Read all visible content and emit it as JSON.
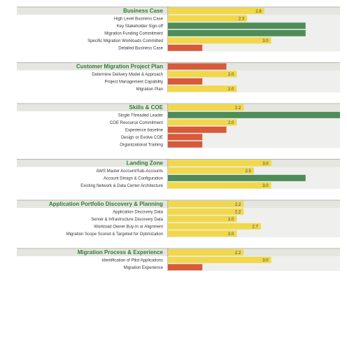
{
  "chart_data": {
    "type": "bar",
    "orientation": "horizontal",
    "xlim": [
      0,
      4
    ],
    "grid": false,
    "legend": "none",
    "colors": {
      "high": "#4e8c58",
      "medium": "#f1d84a",
      "low": "#d75a3a",
      "header_band": "#e6e6e0",
      "row_band": "#efefed",
      "header_text": "#2e7d32"
    },
    "groups": [
      {
        "title": "Business Case",
        "header_value": "2.8",
        "header_score": 2.8,
        "rows": [
          {
            "label": "High Level Business Case",
            "value": "2.3",
            "score": 2.3,
            "level": "medium"
          },
          {
            "label": "Key Stakeholder Sign-off",
            "value": "",
            "score": 4.0,
            "level": "high"
          },
          {
            "label": "Migration Funding Commitment",
            "value": "",
            "score": 4.0,
            "level": "high"
          },
          {
            "label": "Specific Migration Workloads Committed",
            "value": "3.0",
            "score": 3.0,
            "level": "medium"
          },
          {
            "label": "Detailed Business Case",
            "value": "",
            "score": 1.0,
            "level": "low"
          }
        ]
      },
      {
        "title": "Customer Migration Project Plan",
        "header_value": "",
        "header_score": 1.7,
        "header_level": "low",
        "rows": [
          {
            "label": "Determine Delivery Model & Approach",
            "value": "2.0",
            "score": 2.0,
            "level": "medium"
          },
          {
            "label": "Project Management Capability",
            "value": "",
            "score": 1.0,
            "level": "low"
          },
          {
            "label": "Migration Plan",
            "value": "2.0",
            "score": 2.0,
            "level": "medium"
          }
        ]
      },
      {
        "title": "Skills & COE",
        "header_value": "2.2",
        "header_score": 2.2,
        "rows": [
          {
            "label": "Single Threaded Leader",
            "value": "",
            "score": 5.0,
            "level": "high"
          },
          {
            "label": "COE Resource Commitment",
            "value": "2.0",
            "score": 2.0,
            "level": "medium"
          },
          {
            "label": "Experience baseline",
            "value": "",
            "score": 1.7,
            "level": "low"
          },
          {
            "label": "Design or Evolve COE",
            "value": "",
            "score": 1.0,
            "level": "low"
          },
          {
            "label": "Organizational Training",
            "value": "",
            "score": 1.0,
            "level": "low"
          }
        ]
      },
      {
        "title": "Landing Zone",
        "header_value": "3.0",
        "header_score": 3.0,
        "rows": [
          {
            "label": "AWS Master Account/Sub-Accounts",
            "value": "2.5",
            "score": 2.5,
            "level": "medium"
          },
          {
            "label": "Account Design & Configuration",
            "value": "",
            "score": 4.0,
            "level": "high"
          },
          {
            "label": "Existing Network & Data Center Architecture",
            "value": "3.0",
            "score": 3.0,
            "level": "medium"
          }
        ]
      },
      {
        "title": "Application Portfolio Discovery & Planning",
        "header_value": "2.2",
        "header_score": 2.2,
        "rows": [
          {
            "label": "Application Discovery Data",
            "value": "2.2",
            "score": 2.2,
            "level": "medium"
          },
          {
            "label": "Server & Infrastructure Discovery Data",
            "value": "2.0",
            "score": 2.0,
            "level": "medium"
          },
          {
            "label": "Workload Owner Buy-In or Alignment",
            "value": "2.7",
            "score": 2.7,
            "level": "medium"
          },
          {
            "label": "Migration Scope Scored & Targeted for Optimization",
            "value": "2.0",
            "score": 2.0,
            "level": "medium"
          }
        ]
      },
      {
        "title": "Migration Process & Experience",
        "header_value": "2.2",
        "header_score": 2.2,
        "rows": [
          {
            "label": "Identification of Pilot Applications",
            "value": "3.0",
            "score": 3.0,
            "level": "medium"
          },
          {
            "label": "Migration Experience",
            "value": "",
            "score": 1.0,
            "level": "low"
          }
        ]
      }
    ]
  }
}
